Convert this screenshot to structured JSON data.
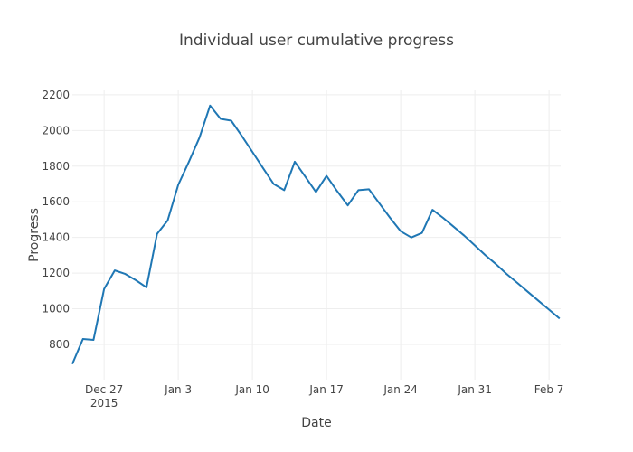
{
  "chart_data": {
    "type": "line",
    "title": "Individual user cumulative progress",
    "xlabel": "Date",
    "ylabel": "Progress",
    "xlim": [
      "2015-12-24",
      "2016-02-08"
    ],
    "ylim": [
      602,
      2225
    ],
    "grid": true,
    "line_color": "#1f77b4",
    "x_ticks": [
      {
        "date": "2015-12-27",
        "label": "Dec 27",
        "sublabel": "2015"
      },
      {
        "date": "2016-01-03",
        "label": "Jan 3"
      },
      {
        "date": "2016-01-10",
        "label": "Jan 10"
      },
      {
        "date": "2016-01-17",
        "label": "Jan 17"
      },
      {
        "date": "2016-01-24",
        "label": "Jan 24"
      },
      {
        "date": "2016-01-31",
        "label": "Jan 31"
      },
      {
        "date": "2016-02-07",
        "label": "Feb 7"
      }
    ],
    "y_ticks": [
      800,
      1000,
      1200,
      1400,
      1600,
      1800,
      2000,
      2200
    ],
    "series": [
      {
        "name": "progress",
        "x": [
          "2015-12-24",
          "2015-12-25",
          "2015-12-26",
          "2015-12-27",
          "2015-12-28",
          "2015-12-29",
          "2015-12-30",
          "2015-12-31",
          "2016-01-01",
          "2016-01-02",
          "2016-01-03",
          "2016-01-04",
          "2016-01-05",
          "2016-01-06",
          "2016-01-07",
          "2016-01-08",
          "2016-01-09",
          "2016-01-10",
          "2016-01-11",
          "2016-01-12",
          "2016-01-13",
          "2016-01-14",
          "2016-01-15",
          "2016-01-16",
          "2016-01-17",
          "2016-01-18",
          "2016-01-19",
          "2016-01-20",
          "2016-01-21",
          "2016-01-22",
          "2016-01-23",
          "2016-01-24",
          "2016-01-25",
          "2016-01-26",
          "2016-01-27",
          "2016-01-28",
          "2016-01-29",
          "2016-01-30",
          "2016-01-31",
          "2016-02-01",
          "2016-02-02",
          "2016-02-03",
          "2016-02-04",
          "2016-02-05",
          "2016-02-06",
          "2016-02-07",
          "2016-02-08"
        ],
        "y": [
          690,
          830,
          825,
          1110,
          1215,
          1195,
          1160,
          1120,
          1420,
          1495,
          1695,
          1825,
          1960,
          2140,
          2065,
          2055,
          1970,
          1880,
          1790,
          1700,
          1665,
          1825,
          1740,
          1655,
          1745,
          1660,
          1580,
          1665,
          1670,
          1590,
          1510,
          1435,
          1400,
          1425,
          1555,
          1510,
          1460,
          1410,
          1355,
          1300,
          1250,
          1195,
          1145,
          1095,
          1045,
          995,
          945
        ]
      }
    ]
  }
}
